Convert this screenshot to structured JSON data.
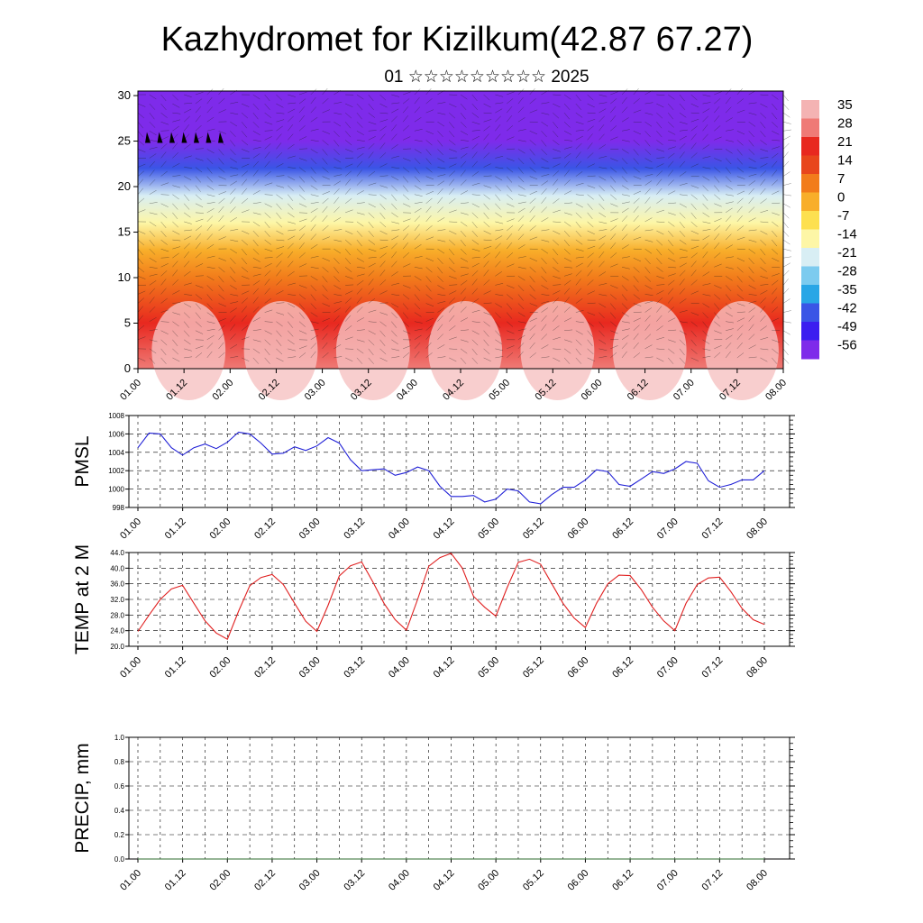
{
  "title": "Kazhydromet for Kizilkum(42.87 67.27)",
  "subtitle": "01 ☆☆☆☆☆☆☆☆☆ 2025",
  "chart_data": [
    {
      "type": "heatmap",
      "name": "vertical-cross-section",
      "xlabel": "",
      "ylabel": "",
      "x_ticks": [
        "01.00",
        "01.12",
        "02.00",
        "02.12",
        "03.00",
        "03.12",
        "04.00",
        "04.12",
        "05.00",
        "05.12",
        "06.00",
        "06.12",
        "07.00",
        "07.12",
        "08.00"
      ],
      "y_ticks": [
        "0",
        "5",
        "10",
        "15",
        "20",
        "25",
        "30"
      ],
      "ylim": [
        0,
        30.5
      ],
      "colorbar": {
        "labels": [
          "35",
          "28",
          "21",
          "14",
          "7",
          "0",
          "-7",
          "-14",
          "-21",
          "-28",
          "-35",
          "-42",
          "-49",
          "-56"
        ],
        "colors": [
          "#f4b3b3",
          "#ef7a76",
          "#e8281f",
          "#e8461c",
          "#f27c1b",
          "#f8ae2a",
          "#fde050",
          "#fdf6a6",
          "#d8eef4",
          "#7ccbef",
          "#28a6e6",
          "#3a55e6",
          "#3b1ef0",
          "#7e2bea"
        ]
      },
      "temperature_profile": [
        {
          "height": 0,
          "temp": 28
        },
        {
          "height": 5,
          "temp": 22
        },
        {
          "height": 10,
          "temp": 10
        },
        {
          "height": 13,
          "temp": 0
        },
        {
          "height": 16,
          "temp": -12
        },
        {
          "height": 19,
          "temp": -24
        },
        {
          "height": 22,
          "temp": -40
        },
        {
          "height": 25,
          "temp": -56
        },
        {
          "height": 30.5,
          "temp": -56
        }
      ],
      "grid": false
    },
    {
      "type": "line",
      "name": "pmsl",
      "ylabel": "PMSL",
      "xlabel": "",
      "ylim": [
        998,
        1008
      ],
      "y_ticks": [
        "998",
        "1000",
        "1002",
        "1004",
        "1006",
        "1008"
      ],
      "x_ticks": [
        "01.00",
        "01.12",
        "02.00",
        "02.12",
        "03.00",
        "03.12",
        "04.00",
        "04.12",
        "05.00",
        "05.12",
        "06.00",
        "06.12",
        "07.00",
        "07.12",
        "08.00"
      ],
      "grid": true,
      "color": "#1f1fd6",
      "x": [
        0,
        3,
        6,
        9,
        12,
        15,
        18,
        21,
        24,
        27,
        30,
        33,
        36,
        39,
        42,
        45,
        48,
        51,
        54,
        57,
        60,
        63,
        66,
        69,
        72,
        75,
        78,
        81,
        84,
        87,
        90,
        93,
        96,
        99,
        102,
        105,
        108,
        111,
        114,
        117,
        120,
        123,
        126,
        129,
        132,
        135,
        138,
        141,
        144,
        147,
        150,
        153,
        156,
        159,
        162,
        165,
        168
      ],
      "values": [
        1004.5,
        1006.1,
        1006.0,
        1004.5,
        1003.7,
        1004.5,
        1004.9,
        1004.4,
        1005.1,
        1006.2,
        1006.0,
        1005.0,
        1003.8,
        1003.9,
        1004.6,
        1004.2,
        1004.7,
        1005.6,
        1005.0,
        1003.2,
        1002.0,
        1002.1,
        1002.2,
        1001.5,
        1001.8,
        1002.4,
        1002.0,
        1000.3,
        999.2,
        999.2,
        999.3,
        998.6,
        998.9,
        1000.0,
        999.8,
        998.6,
        998.4,
        999.4,
        1000.2,
        1000.2,
        1001.0,
        1002.1,
        1001.9,
        1000.5,
        1000.3,
        1001.1,
        1001.9,
        1001.7,
        1002.2,
        1003.0,
        1002.8,
        1000.9,
        1000.2,
        1000.5,
        1001.0,
        1001.0,
        1002.0
      ]
    },
    {
      "type": "line",
      "name": "temp-2m",
      "ylabel": "TEMP at 2 M",
      "xlabel": "",
      "ylim": [
        20,
        44
      ],
      "y_ticks": [
        "20.0",
        "24.0",
        "28.0",
        "32.0",
        "36.0",
        "40.0",
        "44.0"
      ],
      "x_ticks": [
        "01.00",
        "01.12",
        "02.00",
        "02.12",
        "03.00",
        "03.12",
        "04.00",
        "04.12",
        "05.00",
        "05.12",
        "06.00",
        "06.12",
        "07.00",
        "07.12",
        "08.00"
      ],
      "grid": true,
      "color": "#e02020",
      "x": [
        0,
        3,
        6,
        9,
        12,
        15,
        18,
        21,
        24,
        27,
        30,
        33,
        36,
        39,
        42,
        45,
        48,
        51,
        54,
        57,
        60,
        63,
        66,
        69,
        72,
        75,
        78,
        81,
        84,
        87,
        90,
        93,
        96,
        99,
        102,
        105,
        108,
        111,
        114,
        117,
        120,
        123,
        126,
        129,
        132,
        135,
        138,
        141,
        144,
        147,
        150,
        153,
        156,
        159,
        162,
        165,
        168
      ],
      "values": [
        23.8,
        28.0,
        32.0,
        34.7,
        35.6,
        31.0,
        26.5,
        23.4,
        21.8,
        29.0,
        35.5,
        37.6,
        38.4,
        35.8,
        31.0,
        26.4,
        23.8,
        30.5,
        38.0,
        40.6,
        41.6,
        36.5,
        31.0,
        26.8,
        24.1,
        32.0,
        40.5,
        42.7,
        43.8,
        40.0,
        32.8,
        30.0,
        27.7,
        35.0,
        41.5,
        42.3,
        41.0,
        36.0,
        31.0,
        27.2,
        24.8,
        31.0,
        36.0,
        38.2,
        38.1,
        34.5,
        30.0,
        26.5,
        24.0,
        31.0,
        35.8,
        37.5,
        37.7,
        34.0,
        29.7,
        26.8,
        25.6
      ]
    },
    {
      "type": "line",
      "name": "precip",
      "ylabel": "PRECIP, mm",
      "xlabel": "",
      "ylim": [
        0,
        1
      ],
      "y_ticks": [
        "0.0",
        "0.2",
        "0.4",
        "0.6",
        "0.8",
        "1.0"
      ],
      "x_ticks": [
        "01.00",
        "01.12",
        "02.00",
        "02.12",
        "03.00",
        "03.12",
        "04.00",
        "04.12",
        "05.00",
        "05.12",
        "06.00",
        "06.12",
        "07.00",
        "07.12",
        "08.00"
      ],
      "grid": true,
      "color": "#2e6b2e",
      "x": [
        0,
        168
      ],
      "values": [
        0,
        0
      ]
    }
  ]
}
